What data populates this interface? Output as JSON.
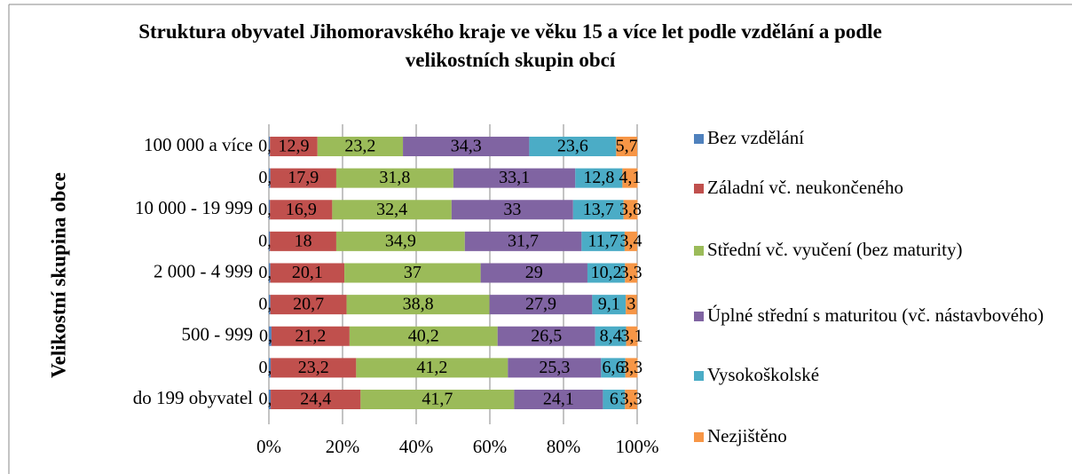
{
  "chart_data": {
    "type": "bar",
    "orientation": "horizontal",
    "stacked": "percent",
    "title": "Struktura obyvatel Jihomoravského kraje ve věku 15 a více let podle vzdělání a podle velikostních skupin obcí",
    "y_label": "Velikostní skupina obce",
    "categories": [
      "do 199 obyvatel",
      null,
      "500 - 999",
      null,
      "2 000 - 4 999",
      null,
      "10 000 - 19 999",
      null,
      "100 000 a více"
    ],
    "xlim": [
      0,
      100
    ],
    "xticks": [
      {
        "value": 0,
        "label": "0%"
      },
      {
        "value": 20,
        "label": "20%"
      },
      {
        "value": 40,
        "label": "40%"
      },
      {
        "value": 60,
        "label": "60%"
      },
      {
        "value": 80,
        "label": "80%"
      },
      {
        "value": 100,
        "label": "100%"
      }
    ],
    "grid": true,
    "legend": "right",
    "series": [
      {
        "name": "Bez vzdělání",
        "color": "#4f81bd",
        "values": [
          0.5,
          0.5,
          0.7,
          0.4,
          0.4,
          0.3,
          0.3,
          0.4,
          0.3
        ],
        "value_labels": [
          "0,5",
          "0,5",
          "0,7",
          "0,4",
          "0,4",
          "0,3",
          "0,3",
          "0,4",
          "0,3"
        ]
      },
      {
        "name": "Záladní vč. neukončeného",
        "color": "#c0504d",
        "values": [
          24.4,
          23.2,
          21.2,
          20.7,
          20.1,
          18,
          16.9,
          17.9,
          12.9
        ],
        "value_labels": [
          "24,4",
          "23,2",
          "21,2",
          "20,7",
          "20,1",
          "18",
          "16,9",
          "17,9",
          "12,9"
        ]
      },
      {
        "name": "Střední vč. vyučení (bez maturity)",
        "color": "#9bbb59",
        "values": [
          41.7,
          41.2,
          40.2,
          38.8,
          37,
          34.9,
          32.4,
          31.8,
          23.2
        ],
        "value_labels": [
          "41,7",
          "41,2",
          "40,2",
          "38,8",
          "37",
          "34,9",
          "32,4",
          "31,8",
          "23,2"
        ]
      },
      {
        "name": "Úplné střední s maturitou (vč. nástavbového)",
        "color": "#8064a2",
        "values": [
          24.1,
          25.3,
          26.5,
          27.9,
          29,
          31.7,
          33,
          33.1,
          34.3
        ],
        "value_labels": [
          "24,1",
          "25,3",
          "26,5",
          "27,9",
          "29",
          "31,7",
          "33",
          "33,1",
          "34,3"
        ]
      },
      {
        "name": "Vysokoškolské",
        "color": "#4bacc6",
        "values": [
          6,
          6.6,
          8.4,
          9.1,
          10.2,
          11.7,
          13.7,
          12.8,
          23.6
        ],
        "value_labels": [
          "6",
          "6,6",
          "8,4",
          "9,1",
          "10,2",
          "11,7",
          "13,7",
          "12,8",
          "23,6"
        ]
      },
      {
        "name": "Nezjištěno",
        "color": "#f79646",
        "values": [
          3.3,
          3.3,
          3.1,
          3,
          3.3,
          3.4,
          3.8,
          4.1,
          5.7
        ],
        "value_labels": [
          "3,3",
          "3,3",
          "3,1",
          "3",
          "3,3",
          "3,4",
          "3,8",
          "4,1",
          "5,7"
        ]
      }
    ]
  }
}
